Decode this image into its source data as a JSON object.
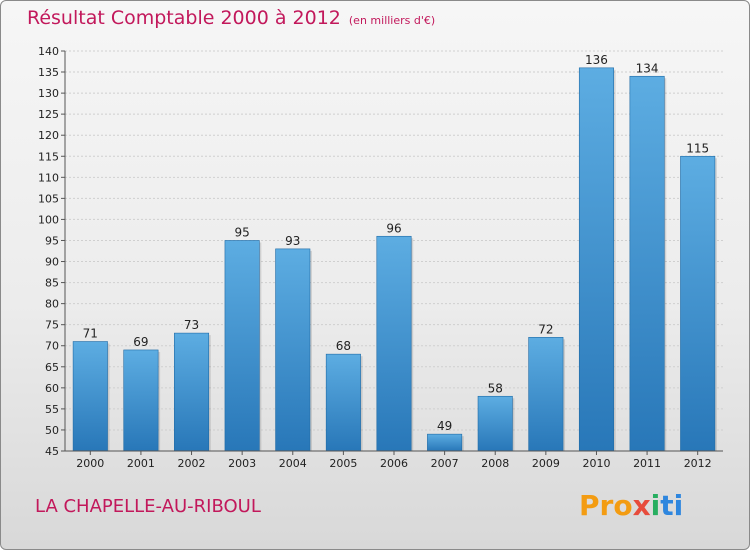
{
  "header": {
    "title": "Résultat Comptable 2000 à 2012",
    "unit": "(en milliers d'€)"
  },
  "footer": {
    "commune": "LA CHAPELLE-AU-RIBOUL",
    "logo": [
      "Pro",
      "x",
      "i",
      "ti"
    ]
  },
  "colors": {
    "bar_top": "#5dade2",
    "bar_bottom": "#2877b8",
    "title": "#c2185b"
  },
  "chart_data": {
    "type": "bar",
    "title": "Résultat Comptable 2000 à 2012",
    "subtitle": "(en milliers d'€)",
    "xlabel": "",
    "ylabel": "",
    "categories": [
      "2000",
      "2001",
      "2002",
      "2003",
      "2004",
      "2005",
      "2006",
      "2007",
      "2008",
      "2009",
      "2010",
      "2011",
      "2012"
    ],
    "values": [
      71,
      69,
      73,
      95,
      93,
      68,
      96,
      49,
      58,
      72,
      136,
      134,
      115
    ],
    "ylim": [
      45,
      140
    ],
    "yticks": [
      45,
      50,
      55,
      60,
      65,
      70,
      75,
      80,
      85,
      90,
      95,
      100,
      105,
      110,
      115,
      120,
      125,
      130,
      135,
      140
    ],
    "grid": true
  }
}
